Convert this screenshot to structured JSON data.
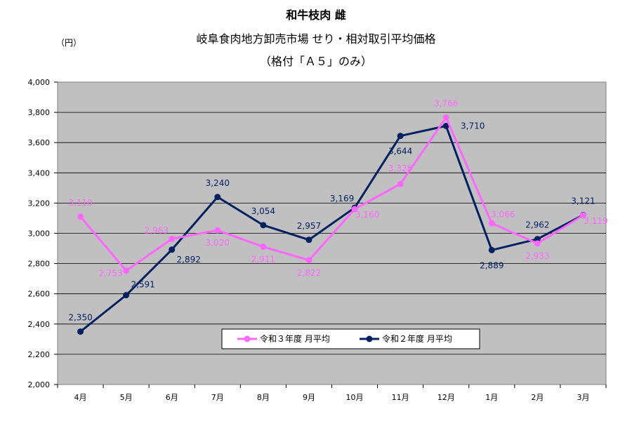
{
  "chart_data": {
    "type": "line",
    "title": "和牛枝肉 雌",
    "subtitle": "岐阜食肉地方卸売市場 せり・相対取引平均価格",
    "subtitle2": "（格付「Ａ５」のみ）",
    "ylabel": "（円）",
    "ylim": [
      2000,
      4000
    ],
    "yticks": [
      2000,
      2200,
      2400,
      2600,
      2800,
      3000,
      3200,
      3400,
      3600,
      3800,
      4000
    ],
    "ytick_labels": [
      "2,000",
      "2,200",
      "2,400",
      "2,600",
      "2,800",
      "3,000",
      "3,200",
      "3,400",
      "3,600",
      "3,800",
      "4,000"
    ],
    "categories": [
      "4月",
      "5月",
      "6月",
      "7月",
      "8月",
      "9月",
      "10月",
      "11月",
      "12月",
      "1月",
      "2月",
      "3月"
    ],
    "grid": true,
    "legend_position": "bottom-center",
    "series": [
      {
        "name": "令和３年度 月平均",
        "color": "#ff66ff",
        "values": [
          3110,
          2753,
          2963,
          3020,
          2911,
          2822,
          3160,
          3326,
          3766,
          3066,
          2933,
          3119
        ],
        "labels": [
          "3,110",
          "2,753",
          "2,963",
          "3,020",
          "2,911",
          "2,822",
          "3,160",
          "3,326",
          "3,766",
          "3,066",
          "2,933",
          "3,119"
        ]
      },
      {
        "name": "令和２年度 月平均",
        "color": "#002060",
        "values": [
          2350,
          2591,
          2892,
          3240,
          3054,
          2957,
          3169,
          3644,
          3710,
          2889,
          2962,
          3121
        ],
        "labels": [
          "2,350",
          "2,591",
          "2,892",
          "3,240",
          "3,054",
          "2,957",
          "3,169",
          "3,644",
          "3,710",
          "2,889",
          "2,962",
          "3,121"
        ]
      }
    ]
  }
}
